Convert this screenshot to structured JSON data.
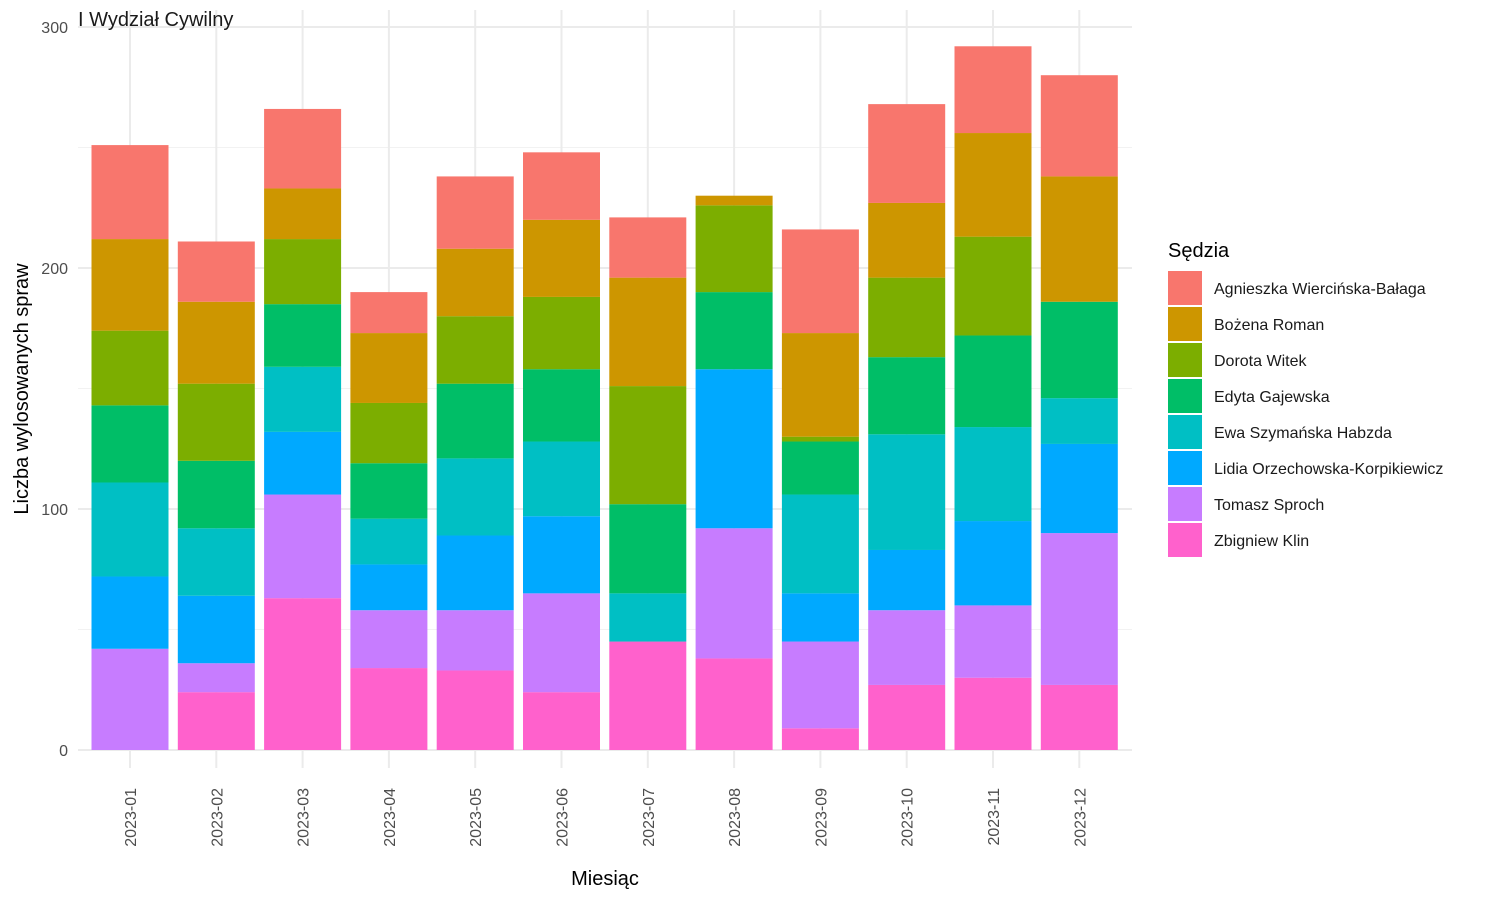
{
  "chart_data": {
    "type": "bar",
    "stacked": true,
    "title": "I Wydział Cywilny",
    "xlabel": "Miesiąc",
    "ylabel": "Liczba wylosowanych spraw",
    "ylim": [
      0,
      300
    ],
    "yticks": [
      0,
      100,
      200,
      300
    ],
    "grid": true,
    "legend_title": "Sędzia",
    "legend_position": "right",
    "categories": [
      "2023-01",
      "2023-02",
      "2023-03",
      "2023-04",
      "2023-05",
      "2023-06",
      "2023-07",
      "2023-08",
      "2023-09",
      "2023-10",
      "2023-11",
      "2023-12"
    ],
    "series": [
      {
        "name": "Agnieszka Wiercińska-Bałaga",
        "color": "#F8766D",
        "values": [
          39,
          25,
          33,
          17,
          30,
          28,
          25,
          0,
          43,
          41,
          36,
          42
        ]
      },
      {
        "name": "Bożena Roman",
        "color": "#CD9600",
        "values": [
          38,
          34,
          21,
          29,
          28,
          32,
          45,
          4,
          43,
          31,
          43,
          52
        ]
      },
      {
        "name": "Dorota Witek",
        "color": "#7CAE00",
        "values": [
          31,
          32,
          27,
          25,
          28,
          30,
          49,
          36,
          2,
          33,
          41,
          0
        ]
      },
      {
        "name": "Edyta Gajewska",
        "color": "#00BE67",
        "values": [
          32,
          28,
          26,
          23,
          31,
          30,
          37,
          32,
          22,
          32,
          38,
          40
        ]
      },
      {
        "name": "Ewa Szymańska Habzda",
        "color": "#00BFC4",
        "values": [
          39,
          28,
          27,
          19,
          32,
          31,
          20,
          0,
          41,
          48,
          39,
          19
        ]
      },
      {
        "name": "Lidia Orzechowska-Korpikiewicz",
        "color": "#00A9FF",
        "values": [
          30,
          28,
          26,
          19,
          31,
          32,
          0,
          66,
          20,
          25,
          35,
          37
        ]
      },
      {
        "name": "Tomasz Sproch",
        "color": "#C77CFF",
        "values": [
          42,
          12,
          43,
          24,
          25,
          41,
          0,
          54,
          36,
          31,
          30,
          63
        ]
      },
      {
        "name": "Zbigniew Klin",
        "color": "#FF61CC",
        "values": [
          0,
          24,
          63,
          34,
          33,
          24,
          45,
          38,
          9,
          27,
          30,
          27
        ]
      }
    ]
  }
}
